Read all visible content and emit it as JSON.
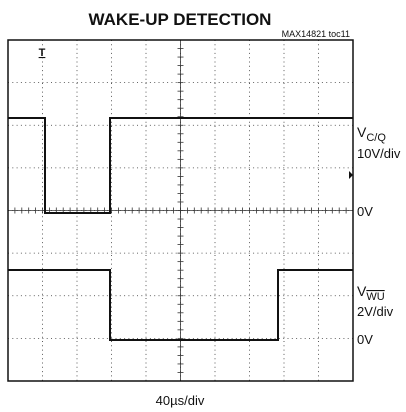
{
  "header": {
    "title": "WAKE-UP DETECTION",
    "note": "MAX14821 toc11"
  },
  "channels": [
    {
      "symbol": "V",
      "subscript": "C/Q",
      "scale": "10V/div",
      "zero": "0V"
    },
    {
      "symbol": "V",
      "subscript": "WU",
      "scale": "2V/div",
      "zero": "0V"
    }
  ],
  "trigger": "T",
  "timebase": "40µs/div"
}
